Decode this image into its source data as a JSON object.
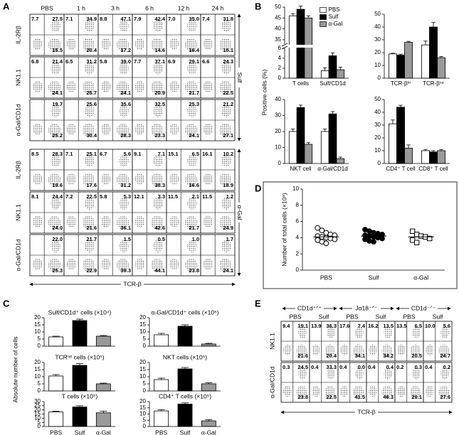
{
  "panel_labels": [
    "A",
    "B",
    "C",
    "D",
    "E"
  ],
  "A": {
    "columns": [
      "PBS",
      "1 h",
      "3 h",
      "6 h",
      "12 h",
      "24 h"
    ],
    "group_labels": [
      "Sulf",
      "α-Gal"
    ],
    "x_label": "TCR-β",
    "rows": [
      {
        "label": "IL-2Rβ",
        "cells": [
          [
            "7.7",
            "27.5",
            "15.5"
          ],
          [
            "7.1",
            "34.9",
            "20.4"
          ],
          [
            "8.8",
            "47.1",
            "17.2"
          ],
          [
            "7.9",
            "42.4",
            "14.6"
          ],
          [
            "7.0",
            "35.0",
            "16.4"
          ],
          [
            "7.4",
            "31.8",
            "15.1"
          ]
        ]
      },
      {
        "label": "NK1.1",
        "cells": [
          [
            "6.8",
            "21.4",
            "24.1"
          ],
          [
            "6.5",
            "31.2",
            "25.7"
          ],
          [
            "5.8",
            "39.0",
            "24.1"
          ],
          [
            "7.7",
            "37.1",
            "20.9"
          ],
          [
            "6.9",
            "29.1",
            "21.7"
          ],
          [
            "6.6",
            "24.3",
            "22.5"
          ]
        ]
      },
      {
        "label": "α-Gal/CD1d",
        "cells": [
          [
            "19.7",
            "25.2"
          ],
          [
            "25.6",
            "30.4"
          ],
          [
            "35.6",
            "28.3"
          ],
          [
            "32.5",
            "23.3"
          ],
          [
            "25.3",
            "24.1"
          ],
          [
            "21.2",
            "27.1"
          ]
        ]
      },
      {
        "label": "IL-2Rβ",
        "cells": [
          [
            "8.5",
            "28.3",
            "19.6"
          ],
          [
            "7.1",
            "25.1",
            "17.6"
          ],
          [
            "6.7",
            "5.6",
            "31.2"
          ],
          [
            "9.1",
            "7.1",
            "38.3"
          ],
          [
            "15.1",
            "6.5",
            "16.6"
          ],
          [
            "16.1",
            "10.2",
            "18.9"
          ]
        ]
      },
      {
        "label": "NK1.1",
        "cells": [
          [
            "8.1",
            "24.4",
            "24.0"
          ],
          [
            "7.2",
            "22.5",
            "21.6"
          ],
          [
            "5.8",
            "5.3",
            "36.1"
          ],
          [
            "12.1",
            "3.3",
            "42.6"
          ],
          [
            "11.5",
            "2.1",
            "21.7"
          ],
          [
            "11.5",
            "1.2",
            "24.9"
          ]
        ]
      },
      {
        "label": "α-Gal/CD1d",
        "cells": [
          [
            "22.0",
            "25.3"
          ],
          [
            "21.7",
            "22.9"
          ],
          [
            "1.5",
            "39.3"
          ],
          [
            "0.5",
            "44.1"
          ],
          [
            "1.0",
            "23.8"
          ],
          [
            "1.7",
            "24.1"
          ]
        ]
      }
    ]
  },
  "B": {
    "y_label": "Positive cells (%)"
  },
  "C": {
    "y_label": "Absolute number of cells"
  },
  "chart_data": [
    {
      "type": "bar",
      "categories": [
        "T cells",
        "Sulf/CD1d"
      ],
      "ylim": [
        0,
        50
      ],
      "axis_break": [
        6,
        33
      ],
      "yticks": [
        0,
        2,
        4,
        6,
        35,
        40,
        45,
        50
      ],
      "series": [
        {
          "name": "PBS",
          "color": "#ffffff",
          "values": [
            46,
            1.5
          ],
          "errors": [
            1,
            0.6
          ]
        },
        {
          "name": "Sulf",
          "color": "#000000",
          "values": [
            49,
            4.5
          ],
          "errors": [
            1.5,
            0.6
          ]
        },
        {
          "name": "α-Gal",
          "color": "#999999",
          "values": [
            45,
            1.7
          ],
          "errors": [
            1,
            0.5
          ]
        }
      ]
    },
    {
      "type": "bar",
      "categories": [
        "TCR-βʰⁱ",
        "TCR-βⁱⁿᵗ"
      ],
      "ylim": [
        0,
        50
      ],
      "yticks": [
        0,
        10,
        20,
        30,
        40,
        50
      ],
      "series": [
        {
          "color": "#ffffff",
          "values": [
            19,
            26
          ],
          "errors": [
            0.5,
            3
          ]
        },
        {
          "color": "#000000",
          "values": [
            18,
            40
          ],
          "errors": [
            0.8,
            3.5
          ]
        },
        {
          "color": "#999999",
          "values": [
            28,
            16
          ],
          "errors": [
            0.8,
            1
          ]
        }
      ]
    },
    {
      "type": "bar",
      "categories": [
        "NKT cell",
        "α-Gal/CD1d"
      ],
      "ylim": [
        0,
        40
      ],
      "yticks": [
        0,
        10,
        20,
        30,
        40
      ],
      "series": [
        {
          "color": "#ffffff",
          "values": [
            20,
            20
          ],
          "errors": [
            1.5,
            1.5
          ]
        },
        {
          "color": "#000000",
          "values": [
            35,
            31
          ],
          "errors": [
            1.5,
            1.5
          ]
        },
        {
          "color": "#999999",
          "values": [
            12,
            3
          ],
          "errors": [
            1,
            1
          ]
        }
      ]
    },
    {
      "type": "bar",
      "categories": [
        "CD4⁺ T cell",
        "CD8⁺ T cell"
      ],
      "ylim": [
        0,
        50
      ],
      "yticks": [
        0,
        10,
        20,
        30,
        40,
        50
      ],
      "series": [
        {
          "color": "#ffffff",
          "values": [
            31,
            10
          ],
          "errors": [
            3,
            1
          ]
        },
        {
          "color": "#000000",
          "values": [
            44,
            9
          ],
          "errors": [
            1.5,
            1
          ]
        },
        {
          "color": "#999999",
          "values": [
            12,
            10
          ],
          "errors": [
            2.5,
            1
          ]
        }
      ]
    },
    {
      "type": "bar",
      "title": "Sulf/CD1d⁺ cells (×10⁴)",
      "ylim": [
        0,
        20
      ],
      "yticks": [
        0,
        5,
        10,
        15,
        20
      ],
      "colors": [
        "#ffffff",
        "#000000",
        "#999999"
      ],
      "values": [
        6.5,
        18,
        7
      ],
      "errors": [
        0.5,
        1,
        0.5
      ]
    },
    {
      "type": "bar",
      "title": "α-Gal/CD1d⁺ cells (×10⁵)",
      "ylim": [
        0,
        20
      ],
      "yticks": [
        0,
        5,
        10,
        15,
        20
      ],
      "colors": [
        "#ffffff",
        "#000000",
        "#999999"
      ],
      "values": [
        8,
        14,
        1.5
      ],
      "errors": [
        1,
        1,
        0.5
      ]
    },
    {
      "type": "bar",
      "title": "TCRⁱⁿᵗ cells (×10⁵)",
      "ylim": [
        0,
        20
      ],
      "yticks": [
        0,
        5,
        10,
        15,
        20
      ],
      "colors": [
        "#ffffff",
        "#000000",
        "#999999"
      ],
      "values": [
        10.5,
        18,
        5
      ],
      "errors": [
        1,
        1.2,
        0.5
      ]
    },
    {
      "type": "bar",
      "title": "NKT cells (×10⁵)",
      "ylim": [
        0,
        20
      ],
      "yticks": [
        0,
        5,
        10,
        15,
        20
      ],
      "colors": [
        "#ffffff",
        "#000000",
        "#999999"
      ],
      "values": [
        8,
        15.5,
        5
      ],
      "errors": [
        1,
        1,
        0.7
      ]
    },
    {
      "type": "bar",
      "title": "T cells (×10⁵)",
      "categories": [
        "PBS",
        "Sulf",
        "α-Gal"
      ],
      "ylim": [
        0,
        30
      ],
      "yticks": [
        0,
        5,
        10,
        15,
        20,
        25,
        30
      ],
      "colors": [
        "#ffffff",
        "#000000",
        "#999999"
      ],
      "values": [
        17.5,
        23.5,
        16.5
      ],
      "errors": [
        1,
        1.5,
        2
      ]
    },
    {
      "type": "bar",
      "title": "CD4⁺ T cells (×10⁵)",
      "categories": [
        "PBS",
        "Sulf",
        "α-Gal"
      ],
      "ylim": [
        0,
        20
      ],
      "yticks": [
        0,
        5,
        10,
        15,
        20
      ],
      "colors": [
        "#ffffff",
        "#000000",
        "#999999"
      ],
      "values": [
        12.5,
        18,
        4.5
      ],
      "errors": [
        1,
        1,
        1
      ]
    },
    {
      "type": "dotplot",
      "y_label": "Number of total cells (×10⁸)",
      "categories": [
        "PBS",
        "Sulf",
        "α-Gal"
      ],
      "ylim": [
        0,
        10
      ],
      "yticks": [
        0,
        2,
        4,
        6,
        8,
        10
      ],
      "markers": [
        "open-circle",
        "filled-circle",
        "open-square"
      ],
      "points": [
        [
          5.2,
          4.9,
          4.6,
          4.4,
          4.3,
          4.2,
          4.1,
          4.0,
          3.9,
          3.8,
          3.7,
          3.5,
          3.3
        ],
        [
          5.0,
          4.8,
          4.6,
          4.5,
          4.4,
          4.3,
          4.2,
          4.1,
          4.0,
          3.9,
          3.8,
          3.6,
          3.5
        ],
        [
          4.8,
          4.4,
          4.2,
          4.1,
          3.9,
          3.7,
          3.4
        ]
      ],
      "means": [
        4.1,
        4.2,
        4.1
      ]
    }
  ],
  "E": {
    "genotypes": [
      "CD1d⁺ᐟ⁺",
      "Jα18⁻ᐟ⁻",
      "CD1d⁻ᐟ⁻"
    ],
    "treatments": [
      "PBS",
      "Sulf",
      "PBS",
      "Sulf",
      "PBS",
      "Sulf"
    ],
    "x_label": "TCR-β",
    "rows": [
      {
        "label": "NK1.1",
        "cells": [
          [
            "9.4",
            "19.1",
            "21.6"
          ],
          [
            "13.9",
            "36.3",
            "20.4"
          ],
          [
            "17.6",
            "7.4",
            "34.1"
          ],
          [
            "16.2",
            "13.5",
            "34.2"
          ],
          [
            "13.5",
            "6.5",
            "20.5"
          ],
          [
            "10.0",
            "5.6",
            "24.7"
          ]
        ]
      },
      {
        "label": "α-Gal/CD1d",
        "cells": [
          [
            "0.3",
            "24.5",
            "23.8"
          ],
          [
            "0.4",
            "33.3",
            "22.5"
          ],
          [
            "0.4",
            "0.0",
            "41.5"
          ],
          [
            "0.4",
            "0.4",
            "46.3"
          ],
          [
            "0.2",
            "0.3",
            "29.1"
          ],
          [
            "0.4",
            "0.2",
            "27.6"
          ]
        ]
      }
    ]
  }
}
